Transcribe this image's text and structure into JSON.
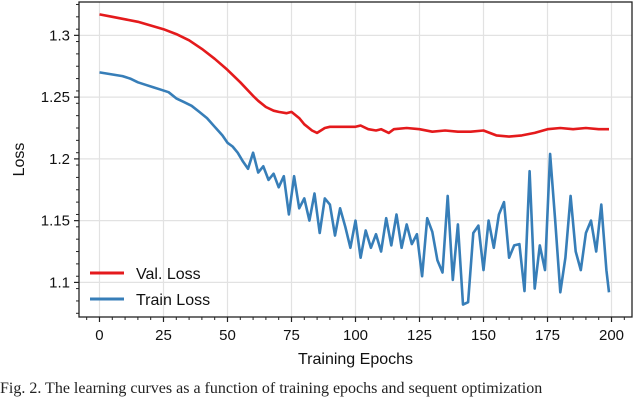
{
  "chart_data": {
    "type": "line",
    "title": "",
    "xlabel": "Training Epochs",
    "ylabel": "Loss",
    "xlim": [
      -8,
      208
    ],
    "ylim": [
      1.072,
      1.327
    ],
    "x_ticks": [
      0,
      25,
      50,
      75,
      100,
      125,
      150,
      175,
      200
    ],
    "x_tick_labels": [
      "0",
      "25",
      "50",
      "75",
      "100",
      "125",
      "150",
      "175",
      "200"
    ],
    "y_ticks": [
      1.1,
      1.15,
      1.2,
      1.25,
      1.3
    ],
    "y_tick_labels": [
      "1.1",
      "1.15",
      "1.2",
      "1.25",
      "1.3"
    ],
    "grid": true,
    "legend_position": "lower left",
    "series": [
      {
        "name": "Val. Loss",
        "color": "#e41a1c",
        "x": [
          0,
          5,
          10,
          15,
          20,
          25,
          30,
          35,
          40,
          45,
          50,
          55,
          60,
          62,
          65,
          68,
          70,
          73,
          75,
          78,
          80,
          83,
          85,
          88,
          90,
          95,
          100,
          102,
          105,
          108,
          110,
          113,
          115,
          120,
          125,
          130,
          135,
          140,
          145,
          150,
          155,
          160,
          165,
          170,
          175,
          180,
          185,
          190,
          195,
          199
        ],
        "values": [
          1.317,
          1.315,
          1.313,
          1.311,
          1.308,
          1.305,
          1.301,
          1.296,
          1.289,
          1.281,
          1.272,
          1.262,
          1.251,
          1.247,
          1.242,
          1.239,
          1.238,
          1.237,
          1.238,
          1.233,
          1.228,
          1.223,
          1.221,
          1.225,
          1.226,
          1.226,
          1.226,
          1.227,
          1.224,
          1.223,
          1.224,
          1.221,
          1.224,
          1.225,
          1.224,
          1.222,
          1.223,
          1.222,
          1.222,
          1.223,
          1.219,
          1.218,
          1.219,
          1.221,
          1.224,
          1.225,
          1.224,
          1.225,
          1.224,
          1.224
        ]
      },
      {
        "name": "Train Loss",
        "color": "#377eb8",
        "x": [
          0,
          3,
          6,
          9,
          12,
          15,
          18,
          21,
          24,
          27,
          30,
          33,
          36,
          39,
          42,
          45,
          48,
          50,
          52,
          54,
          56,
          58,
          60,
          62,
          64,
          66,
          68,
          70,
          72,
          74,
          76,
          78,
          80,
          82,
          84,
          86,
          88,
          90,
          92,
          94,
          96,
          98,
          100,
          102,
          104,
          106,
          108,
          110,
          112,
          114,
          116,
          118,
          120,
          122,
          124,
          126,
          128,
          130,
          132,
          134,
          136,
          138,
          140,
          142,
          144,
          146,
          148,
          150,
          152,
          154,
          156,
          158,
          160,
          162,
          164,
          166,
          168,
          170,
          172,
          174,
          176,
          178,
          180,
          182,
          184,
          186,
          188,
          190,
          192,
          194,
          196,
          198,
          199
        ],
        "values": [
          1.27,
          1.269,
          1.268,
          1.267,
          1.265,
          1.262,
          1.26,
          1.258,
          1.256,
          1.254,
          1.249,
          1.246,
          1.243,
          1.238,
          1.233,
          1.226,
          1.219,
          1.213,
          1.21,
          1.205,
          1.198,
          1.192,
          1.205,
          1.189,
          1.194,
          1.183,
          1.188,
          1.177,
          1.186,
          1.155,
          1.186,
          1.16,
          1.168,
          1.15,
          1.172,
          1.14,
          1.168,
          1.163,
          1.138,
          1.16,
          1.145,
          1.128,
          1.15,
          1.12,
          1.142,
          1.128,
          1.139,
          1.125,
          1.152,
          1.13,
          1.155,
          1.128,
          1.147,
          1.131,
          1.139,
          1.105,
          1.152,
          1.141,
          1.118,
          1.108,
          1.17,
          1.102,
          1.147,
          1.082,
          1.084,
          1.14,
          1.146,
          1.11,
          1.15,
          1.128,
          1.155,
          1.165,
          1.12,
          1.13,
          1.131,
          1.093,
          1.19,
          1.095,
          1.13,
          1.11,
          1.204,
          1.15,
          1.092,
          1.12,
          1.17,
          1.125,
          1.11,
          1.14,
          1.15,
          1.125,
          1.163,
          1.11,
          1.092
        ]
      }
    ]
  },
  "legend": {
    "items": [
      {
        "label": "Val. Loss",
        "color": "#e41a1c"
      },
      {
        "label": "Train Loss",
        "color": "#377eb8"
      }
    ]
  },
  "caption": {
    "text": "Fig. 2.  The learning curves as a function of training epochs and sequent optimization"
  }
}
